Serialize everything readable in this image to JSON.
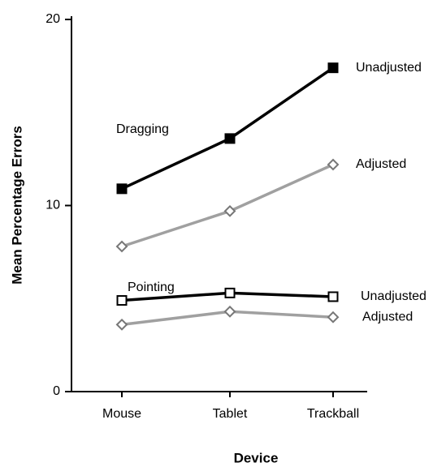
{
  "chart_data": {
    "type": "line",
    "x_label": "Device",
    "y_label": "Mean Percentage Errors",
    "categories": [
      "Mouse",
      "Tablet",
      "Trackball"
    ],
    "series": [
      {
        "name": "Unadjusted",
        "color": "#000000",
        "marker": "filled-square",
        "values": [
          10.9,
          13.6,
          17.4
        ]
      },
      {
        "name": "Adjusted",
        "color": "#a0a0a0",
        "marker": "diamond",
        "values": [
          7.8,
          9.7,
          12.2
        ]
      },
      {
        "name": "Unadjusted",
        "color": "#000000",
        "marker": "open-square",
        "values": [
          4.9,
          5.3,
          5.1
        ]
      },
      {
        "name": "Adjusted",
        "color": "#a0a0a0",
        "marker": "diamond",
        "values": [
          3.6,
          4.3,
          4.0
        ]
      }
    ],
    "annotations": [
      "Dragging",
      "Pointing"
    ],
    "ylim": [
      0,
      20
    ],
    "yticks": [
      0,
      10,
      20
    ]
  }
}
